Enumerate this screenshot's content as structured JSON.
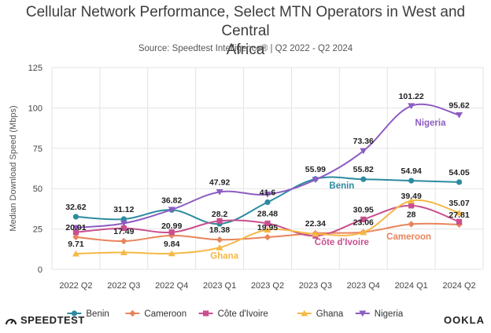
{
  "header": {
    "title_line1": "Cellular Network Performance, Select MTN Operators in West and Central",
    "title_line2": "Africa",
    "subtitle": "Source: Speedtest Intelligence® | Q2 2022 - Q2 2024"
  },
  "footer": {
    "left_logo": "SPEEDTEST",
    "right_logo": "OOKLA"
  },
  "chart_data": {
    "type": "line",
    "ylabel": "Median Download Speed (Mbps)",
    "ylim": [
      0,
      125
    ],
    "yticks": [
      0,
      25,
      50,
      75,
      100,
      125
    ],
    "grid": true,
    "legend_position": "bottom",
    "categories": [
      "2022 Q2",
      "2022 Q3",
      "2022 Q4",
      "2023 Q1",
      "2023 Q2",
      "2023 Q3",
      "2023 Q4",
      "2024 Q1",
      "2024 Q2"
    ],
    "series": [
      {
        "name": "Benin",
        "color": "#2d8ba0",
        "marker": "circle",
        "values": [
          32.62,
          31.12,
          36.82,
          28.2,
          41.6,
          55.99,
          55.82,
          54.94,
          54.05
        ]
      },
      {
        "name": "Cameroon",
        "color": "#e8845c",
        "marker": "diamond",
        "values": [
          20.01,
          17.49,
          20.99,
          18.38,
          19.95,
          22.34,
          23.06,
          28,
          27.81
        ]
      },
      {
        "name": "Côte d'Ivoire",
        "color": "#c94f8e",
        "marker": "square",
        "values": [
          23.0,
          25.5,
          23.0,
          30.0,
          28.48,
          20.8,
          30.95,
          39.49,
          29.5
        ]
      },
      {
        "name": "Ghana",
        "color": "#f5b845",
        "marker": "triangle-up",
        "values": [
          9.71,
          10.5,
          9.84,
          13.5,
          24.5,
          22.0,
          23.0,
          42.5,
          35.07
        ]
      },
      {
        "name": "Nigeria",
        "color": "#8c5cc2",
        "marker": "triangle-down",
        "values": [
          25.8,
          28.5,
          37.0,
          47.92,
          46.5,
          55.5,
          73.36,
          101.22,
          95.62
        ]
      }
    ],
    "data_labels": [
      {
        "text": "32.62",
        "x": 0,
        "y": 32.62
      },
      {
        "text": "31.12",
        "x": 1,
        "y": 31.12
      },
      {
        "text": "36.82",
        "x": 2,
        "y": 36.82
      },
      {
        "text": "47.92",
        "x": 3,
        "y": 47.92
      },
      {
        "text": "41.6",
        "x": 4,
        "y": 41.6
      },
      {
        "text": "55.99",
        "x": 5,
        "y": 55.99
      },
      {
        "text": "73.36",
        "x": 6,
        "y": 73.36
      },
      {
        "text": "101.22",
        "x": 7,
        "y": 101.22
      },
      {
        "text": "95.62",
        "x": 8,
        "y": 95.62
      },
      {
        "text": "55.82",
        "x": 6,
        "y": 55.82
      },
      {
        "text": "54.94",
        "x": 7,
        "y": 54.94
      },
      {
        "text": "54.05",
        "x": 8,
        "y": 54.05
      },
      {
        "text": "20.01",
        "x": 0,
        "y": 20.01
      },
      {
        "text": "17.49",
        "x": 1,
        "y": 17.49
      },
      {
        "text": "20.99",
        "x": 2,
        "y": 20.99
      },
      {
        "text": "28.2",
        "x": 3,
        "y": 28.2
      },
      {
        "text": "18.38",
        "x": 3,
        "y": 18.38
      },
      {
        "text": "28.48",
        "x": 4,
        "y": 28.48
      },
      {
        "text": "19.95",
        "x": 4,
        "y": 19.95
      },
      {
        "text": "22.34",
        "x": 5,
        "y": 22.34
      },
      {
        "text": "30.95",
        "x": 6,
        "y": 30.95
      },
      {
        "text": "23.06",
        "x": 6,
        "y": 23.06
      },
      {
        "text": "39.49",
        "x": 7,
        "y": 39.49
      },
      {
        "text": "28",
        "x": 7,
        "y": 28
      },
      {
        "text": "35.07",
        "x": 8,
        "y": 35.07
      },
      {
        "text": "27.81",
        "x": 8,
        "y": 27.81
      },
      {
        "text": "9.71",
        "x": 0,
        "y": 9.71
      },
      {
        "text": "9.84",
        "x": 2,
        "y": 9.84
      }
    ],
    "series_labels": [
      {
        "text": "Nigeria",
        "series": "Nigeria",
        "x": 7.4,
        "y": 89
      },
      {
        "text": "Benin",
        "series": "Benin",
        "x": 5.55,
        "y": 50
      },
      {
        "text": "Côte d'Ivoire",
        "series": "Côte d'Ivoire",
        "x": 5.55,
        "y": 15
      },
      {
        "text": "Cameroon",
        "series": "Cameroon",
        "x": 6.95,
        "y": 18.5
      },
      {
        "text": "Ghana",
        "series": "Ghana",
        "x": 3.1,
        "y": 6.5
      }
    ]
  }
}
